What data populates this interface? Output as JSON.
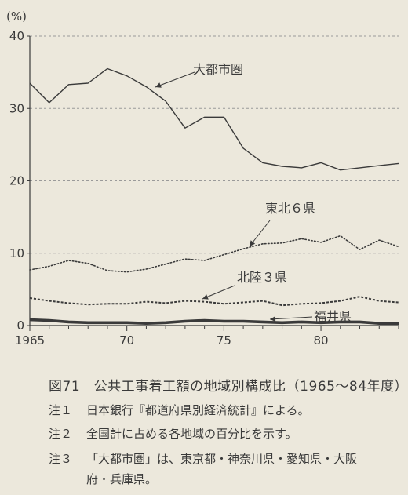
{
  "chart_data": {
    "type": "line",
    "ylabel": "(%)",
    "ylim": [
      0,
      40
    ],
    "xlim": [
      1965,
      1984
    ],
    "yticks": [
      0,
      10,
      20,
      30,
      40
    ],
    "xticks": [
      1965,
      1970,
      1975,
      1980
    ],
    "xtick_labels": [
      "1965",
      "70",
      "75",
      "80"
    ],
    "grid": "horizontal-dashed",
    "x": [
      1965,
      1966,
      1967,
      1968,
      1969,
      1970,
      1971,
      1972,
      1973,
      1974,
      1975,
      1976,
      1977,
      1978,
      1979,
      1980,
      1981,
      1982,
      1983,
      1984
    ],
    "series": [
      {
        "name": "大都市圏",
        "style": "solid",
        "values": [
          33.5,
          30.8,
          33.3,
          33.5,
          35.5,
          34.5,
          33.0,
          31.0,
          27.3,
          28.8,
          28.8,
          24.5,
          22.5,
          22.0,
          21.8,
          22.5,
          21.5,
          21.8,
          22.1,
          22.4
        ]
      },
      {
        "name": "東北６県",
        "style": "dotted",
        "values": [
          7.7,
          8.2,
          9.0,
          8.6,
          7.6,
          7.4,
          7.8,
          8.5,
          9.2,
          9.0,
          9.8,
          10.6,
          11.3,
          11.4,
          12.0,
          11.5,
          12.4,
          10.5,
          11.8,
          10.9
        ]
      },
      {
        "name": "北陸３県",
        "style": "dashed",
        "values": [
          3.8,
          3.4,
          3.1,
          2.9,
          3.0,
          3.0,
          3.3,
          3.1,
          3.4,
          3.3,
          3.0,
          3.2,
          3.4,
          2.8,
          3.0,
          3.1,
          3.4,
          4.0,
          3.4,
          3.2
        ]
      },
      {
        "name": "福井県",
        "style": "thick",
        "values": [
          0.8,
          0.7,
          0.5,
          0.4,
          0.4,
          0.4,
          0.3,
          0.4,
          0.6,
          0.7,
          0.6,
          0.6,
          0.5,
          0.4,
          0.5,
          0.4,
          0.5,
          0.5,
          0.3,
          0.3
        ]
      }
    ]
  },
  "colors": {
    "background": "#ece8dc",
    "ink": "#3a3a3a",
    "grid": "#9a9a9a"
  },
  "figure": {
    "title": "図71　公共工事着工額の地域別構成比（1965〜84年度）",
    "notes": [
      {
        "label": "注１",
        "text": "日本銀行『都道府県別経済統計』による。"
      },
      {
        "label": "注２",
        "text": "全国計に占める各地域の百分比を示す。"
      },
      {
        "label": "注３",
        "text": "「大都市圏」は、東京都・神奈川県・愛知県・大阪"
      },
      {
        "label": "",
        "text": "府・兵庫県。"
      }
    ]
  }
}
